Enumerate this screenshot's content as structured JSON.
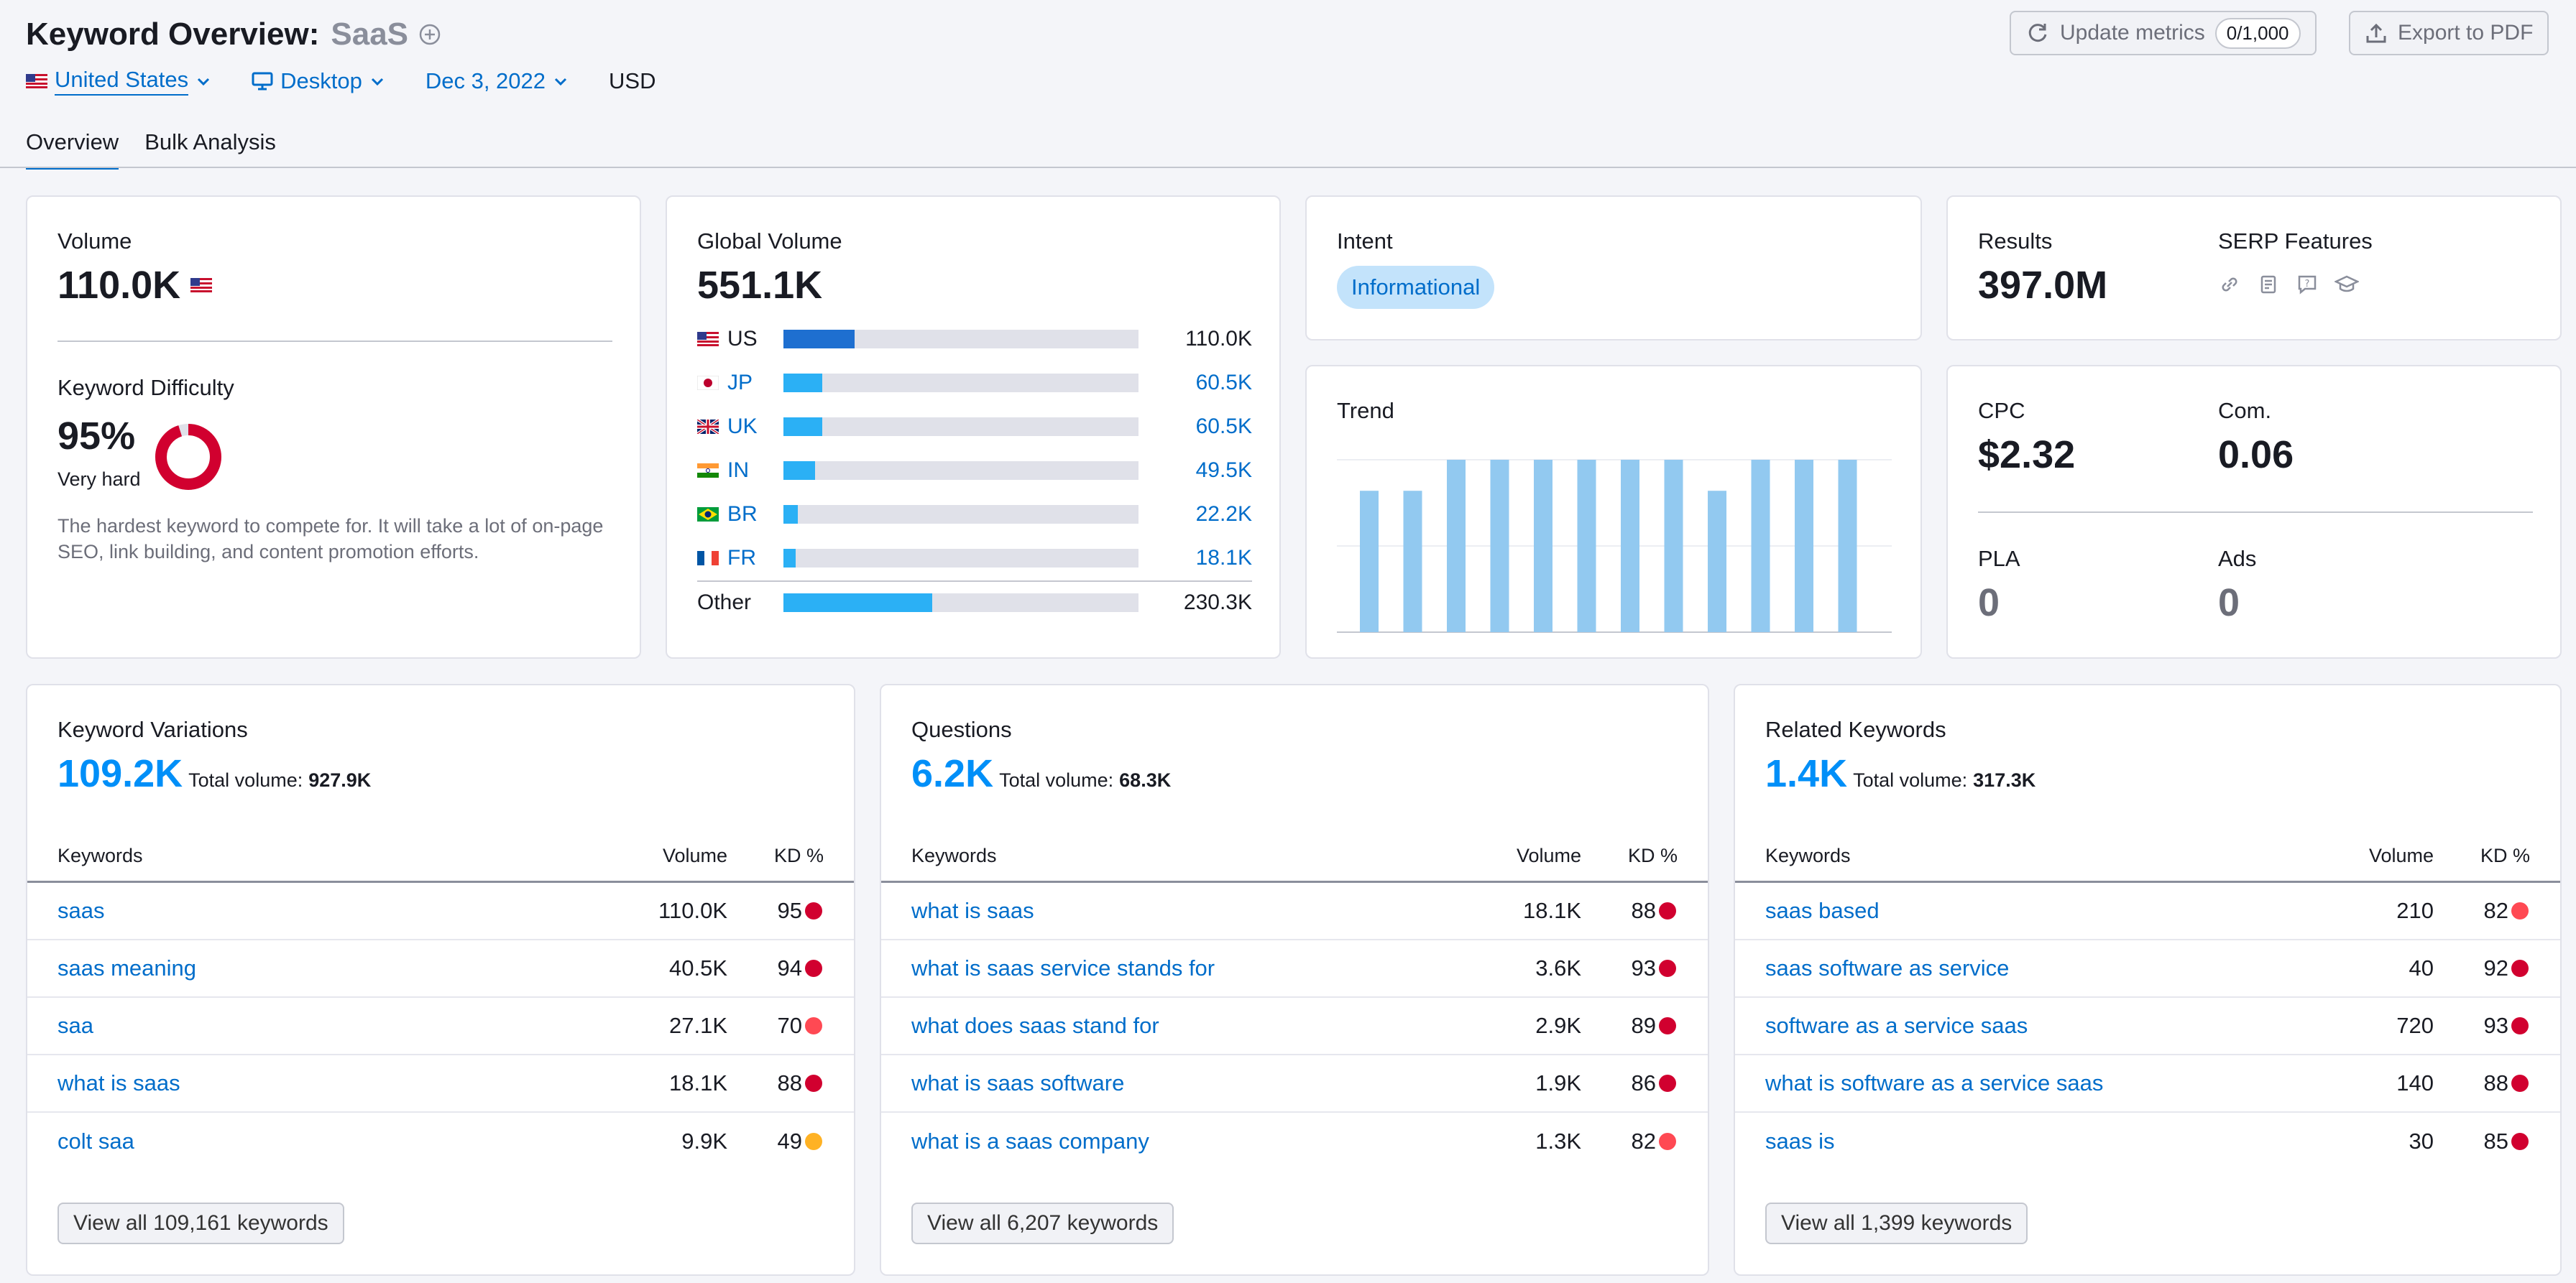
{
  "header": {
    "title": "Keyword Overview:",
    "keyword": "SaaS",
    "update_label": "Update metrics",
    "update_count": "0/1,000",
    "export_label": "Export to PDF"
  },
  "filters": {
    "country": "United States",
    "device": "Desktop",
    "date": "Dec 3, 2022",
    "currency": "USD"
  },
  "tabs": [
    "Overview",
    "Bulk Analysis"
  ],
  "volume": {
    "label": "Volume",
    "value": "110.0K",
    "kd_label": "Keyword Difficulty",
    "kd_value": "95%",
    "kd_level": "Very hard",
    "kd_percent": 95,
    "kd_desc": "The hardest keyword to compete for. It will take a lot of on-page SEO, link building, and content promotion efforts."
  },
  "global_volume": {
    "label": "Global Volume",
    "value": "551.1K",
    "countries": [
      {
        "code": "US",
        "value": "110.0K",
        "fraction": 0.2
      },
      {
        "code": "JP",
        "value": "60.5K",
        "fraction": 0.11
      },
      {
        "code": "UK",
        "value": "60.5K",
        "fraction": 0.11
      },
      {
        "code": "IN",
        "value": "49.5K",
        "fraction": 0.09
      },
      {
        "code": "BR",
        "value": "22.2K",
        "fraction": 0.04
      },
      {
        "code": "FR",
        "value": "18.1K",
        "fraction": 0.035
      }
    ],
    "other_label": "Other",
    "other_value": "230.3K",
    "other_fraction": 0.42
  },
  "intent": {
    "label": "Intent",
    "value": "Informational"
  },
  "trend": {
    "label": "Trend",
    "values": [
      0.82,
      0.82,
      1,
      1,
      1,
      1,
      1,
      1,
      0.82,
      1,
      1,
      1
    ]
  },
  "results": {
    "label": "Results",
    "value": "397.0M",
    "serp_label": "SERP Features",
    "serp_icons": [
      "link-icon",
      "document-icon",
      "question-icon",
      "graduation-icon"
    ]
  },
  "cpc": {
    "cpc_label": "CPC",
    "cpc_value": "$2.32",
    "com_label": "Com.",
    "com_value": "0.06",
    "pla_label": "PLA",
    "pla_value": "0",
    "ads_label": "Ads",
    "ads_value": "0"
  },
  "colors": {
    "accent": "#006dca",
    "bar_dark": "#1e6fd0",
    "bar_light": "#2bb0f5",
    "trend_bar": "#92c9f0",
    "kd_red": "#d1002f",
    "kd_light_red": "#ff4953",
    "kd_orange": "#ffb224"
  },
  "panels": [
    {
      "title": "Keyword Variations",
      "count": "109.2K",
      "total_label": "Total volume:",
      "total_value": "927.9K",
      "col_keywords": "Keywords",
      "col_volume": "Volume",
      "col_kd": "KD %",
      "rows": [
        {
          "keyword": "saas",
          "volume": "110.0K",
          "kd": "95",
          "color": "#d1002f"
        },
        {
          "keyword": "saas meaning",
          "volume": "40.5K",
          "kd": "94",
          "color": "#d1002f"
        },
        {
          "keyword": "saa",
          "volume": "27.1K",
          "kd": "70",
          "color": "#ff4953"
        },
        {
          "keyword": "what is saas",
          "volume": "18.1K",
          "kd": "88",
          "color": "#d1002f"
        },
        {
          "keyword": "colt saa",
          "volume": "9.9K",
          "kd": "49",
          "color": "#ffb224"
        }
      ],
      "view_all": "View all 109,161 keywords"
    },
    {
      "title": "Questions",
      "count": "6.2K",
      "total_label": "Total volume:",
      "total_value": "68.3K",
      "col_keywords": "Keywords",
      "col_volume": "Volume",
      "col_kd": "KD %",
      "rows": [
        {
          "keyword": "what is saas",
          "volume": "18.1K",
          "kd": "88",
          "color": "#d1002f"
        },
        {
          "keyword": "what is saas service stands for",
          "volume": "3.6K",
          "kd": "93",
          "color": "#d1002f"
        },
        {
          "keyword": "what does saas stand for",
          "volume": "2.9K",
          "kd": "89",
          "color": "#d1002f"
        },
        {
          "keyword": "what is saas software",
          "volume": "1.9K",
          "kd": "86",
          "color": "#d1002f"
        },
        {
          "keyword": "what is a saas company",
          "volume": "1.3K",
          "kd": "82",
          "color": "#ff4953"
        }
      ],
      "view_all": "View all 6,207 keywords"
    },
    {
      "title": "Related Keywords",
      "count": "1.4K",
      "total_label": "Total volume:",
      "total_value": "317.3K",
      "col_keywords": "Keywords",
      "col_volume": "Volume",
      "col_kd": "KD %",
      "rows": [
        {
          "keyword": "saas based",
          "volume": "210",
          "kd": "82",
          "color": "#ff4953"
        },
        {
          "keyword": "saas software as service",
          "volume": "40",
          "kd": "92",
          "color": "#d1002f"
        },
        {
          "keyword": "software as a service saas",
          "volume": "720",
          "kd": "93",
          "color": "#d1002f"
        },
        {
          "keyword": "what is software as a service saas",
          "volume": "140",
          "kd": "88",
          "color": "#d1002f"
        },
        {
          "keyword": "saas is",
          "volume": "30",
          "kd": "85",
          "color": "#d1002f"
        }
      ],
      "view_all": "View all 1,399 keywords"
    }
  ]
}
